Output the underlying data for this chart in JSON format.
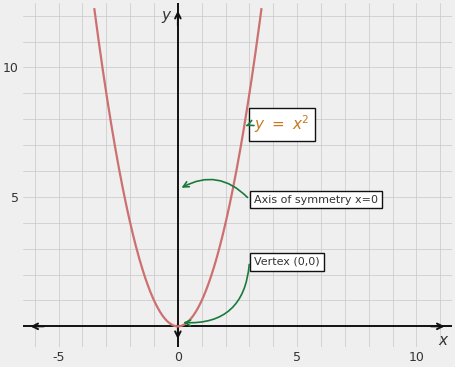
{
  "xlim": [
    -6.5,
    11.5
  ],
  "ylim": [
    -0.8,
    12.5
  ],
  "xticks": [
    -5,
    0,
    5,
    10
  ],
  "yticks": [
    5,
    10
  ],
  "xlabel": "x",
  "ylabel": "y",
  "grid_color": "#c8c8c8",
  "parabola_color": "#cc7070",
  "parabola_linewidth": 1.6,
  "axis_color": "#111111",
  "bg_color": "#efefef",
  "annotation_color": "#1a7a3a",
  "box_edge_color": "#111111",
  "axis_sym_text": "Axis of symmetry x=0",
  "vertex_text": "Vertex (0,0)",
  "text_color": "#333333",
  "formula_color": "#c87820"
}
